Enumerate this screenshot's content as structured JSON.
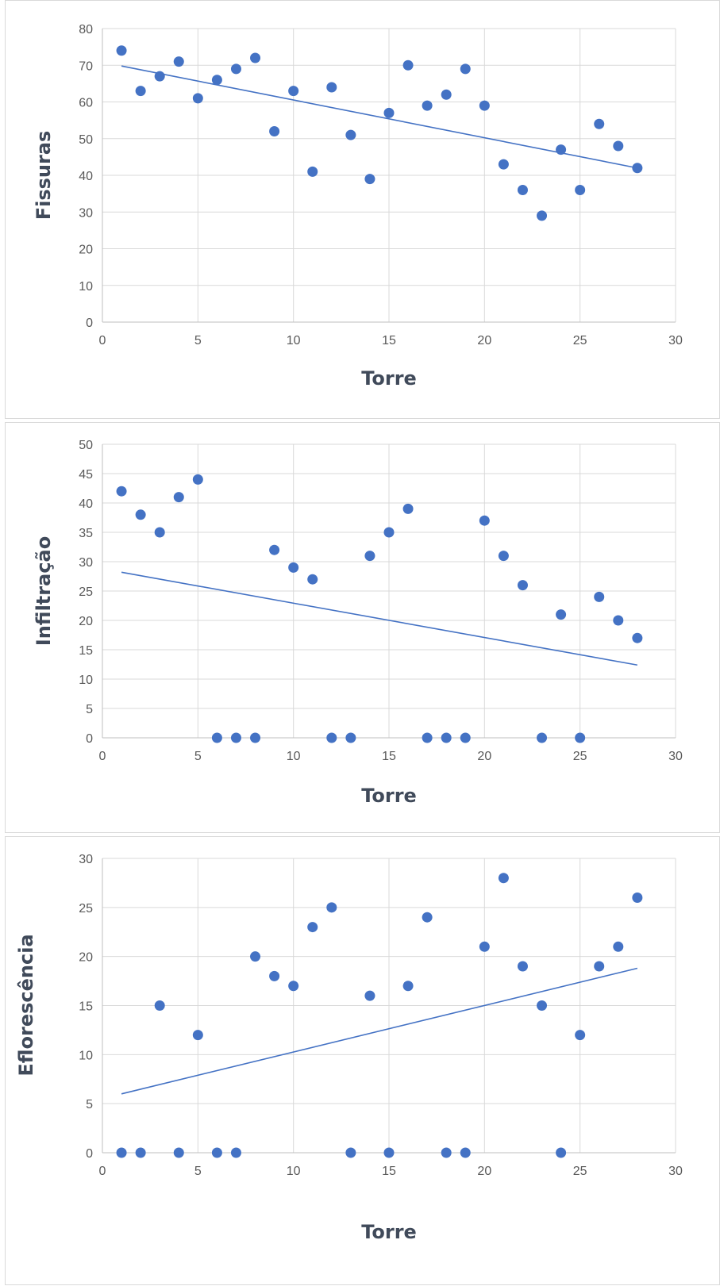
{
  "chart_data": [
    {
      "type": "scatter",
      "title": "",
      "xlabel": "Torre",
      "ylabel": "Fissuras",
      "xlim": [
        0,
        30
      ],
      "ylim": [
        0,
        80
      ],
      "xticks": [
        0,
        5,
        10,
        15,
        20,
        25,
        30
      ],
      "yticks": [
        0,
        10,
        20,
        30,
        40,
        50,
        60,
        70,
        80
      ],
      "grid": true,
      "legend": "none",
      "colors": {
        "points": "#4472c4",
        "trendline": "#4472c4",
        "grid": "#d9d9d9"
      },
      "series": [
        {
          "x": [
            1,
            2,
            3,
            4,
            5,
            6,
            7,
            8,
            9,
            10,
            11,
            12,
            13,
            14,
            15,
            16,
            17,
            18,
            19,
            20,
            21,
            22,
            23,
            24,
            25,
            26,
            27,
            28
          ],
          "values": [
            74,
            63,
            67,
            71,
            61,
            66,
            69,
            72,
            52,
            63,
            41,
            64,
            51,
            39,
            57,
            70,
            59,
            62,
            69,
            59,
            43,
            36,
            29,
            47,
            36,
            54,
            48,
            42
          ]
        }
      ],
      "trendline": {
        "type": "linear",
        "x": [
          1,
          28
        ],
        "y": [
          69.8,
          42.0
        ]
      }
    },
    {
      "type": "scatter",
      "title": "",
      "xlabel": "Torre",
      "ylabel": "Infiltração",
      "xlim": [
        0,
        30
      ],
      "ylim": [
        0,
        50
      ],
      "xticks": [
        0,
        5,
        10,
        15,
        20,
        25,
        30
      ],
      "yticks": [
        0,
        5,
        10,
        15,
        20,
        25,
        30,
        35,
        40,
        45,
        50
      ],
      "grid": true,
      "legend": "none",
      "colors": {
        "points": "#4472c4",
        "trendline": "#4472c4",
        "grid": "#d9d9d9"
      },
      "series": [
        {
          "x": [
            1,
            2,
            3,
            4,
            5,
            6,
            7,
            8,
            9,
            10,
            11,
            12,
            13,
            14,
            15,
            16,
            17,
            18,
            19,
            20,
            21,
            22,
            23,
            24,
            25,
            26,
            27,
            28
          ],
          "values": [
            42,
            38,
            35,
            41,
            44,
            0,
            0,
            0,
            32,
            29,
            27,
            0,
            0,
            31,
            35,
            39,
            0,
            0,
            0,
            37,
            31,
            26,
            0,
            21,
            0,
            24,
            20,
            17
          ]
        }
      ],
      "trendline": {
        "type": "linear",
        "x": [
          1,
          28
        ],
        "y": [
          28.2,
          12.4
        ]
      }
    },
    {
      "type": "scatter",
      "title": "",
      "xlabel": "Torre",
      "ylabel": "Eflorescência",
      "xlim": [
        0,
        30
      ],
      "ylim": [
        0,
        30
      ],
      "xticks": [
        0,
        5,
        10,
        15,
        20,
        25,
        30
      ],
      "yticks": [
        0,
        5,
        10,
        15,
        20,
        25,
        30
      ],
      "grid": true,
      "legend": "none",
      "colors": {
        "points": "#4472c4",
        "trendline": "#4472c4",
        "grid": "#d9d9d9"
      },
      "series": [
        {
          "x": [
            1,
            2,
            3,
            4,
            5,
            6,
            7,
            8,
            9,
            10,
            11,
            12,
            13,
            14,
            15,
            16,
            17,
            18,
            19,
            20,
            21,
            22,
            23,
            24,
            25,
            26,
            27,
            28
          ],
          "values": [
            0,
            0,
            15,
            0,
            12,
            0,
            0,
            20,
            18,
            17,
            23,
            25,
            0,
            16,
            0,
            17,
            24,
            0,
            0,
            21,
            28,
            19,
            15,
            0,
            12,
            19,
            21,
            26
          ]
        }
      ],
      "trendline": {
        "type": "linear",
        "x": [
          1,
          28
        ],
        "y": [
          6.0,
          18.8
        ]
      }
    }
  ]
}
